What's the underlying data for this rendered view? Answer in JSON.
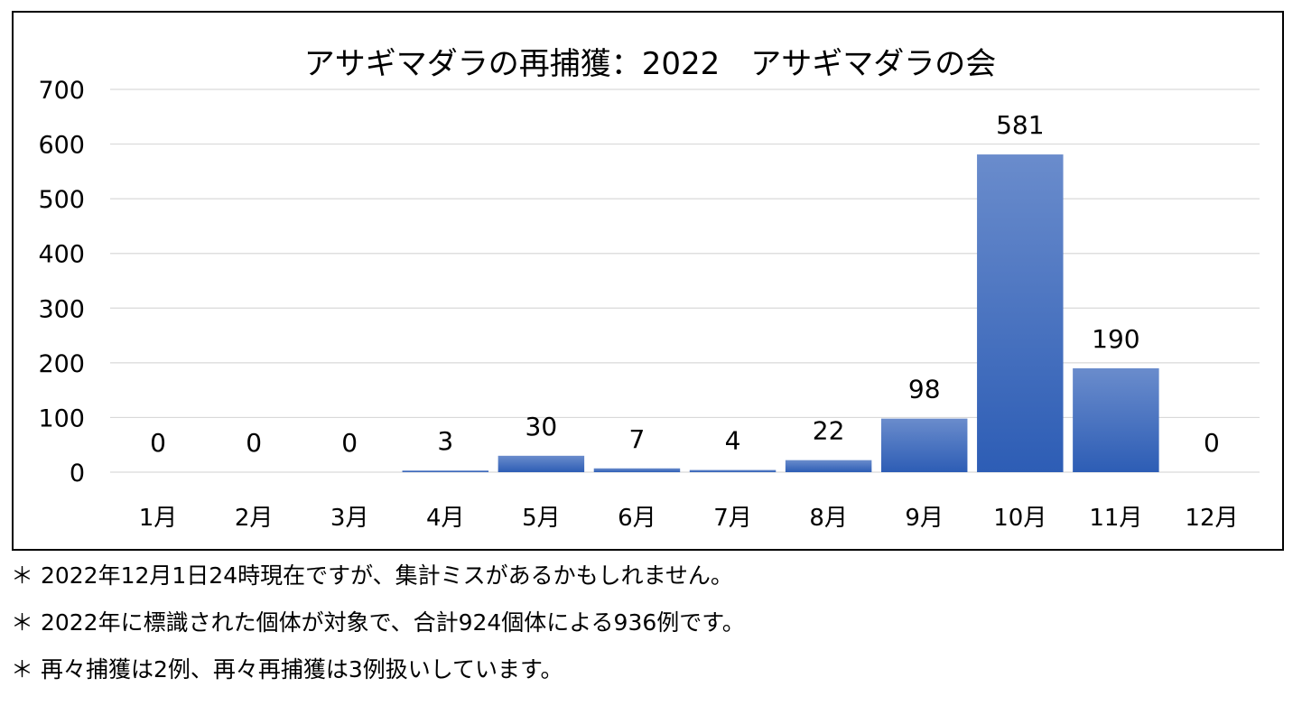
{
  "chart_data": {
    "type": "bar",
    "title": "アサギマダラの再捕獲：2022　アサギマダラの会",
    "categories": [
      "1月",
      "2月",
      "3月",
      "4月",
      "5月",
      "6月",
      "7月",
      "8月",
      "9月",
      "10月",
      "11月",
      "12月"
    ],
    "values": [
      0,
      0,
      0,
      3,
      30,
      7,
      4,
      22,
      98,
      581,
      190,
      0
    ],
    "y_ticks": [
      "0",
      "100",
      "200",
      "300",
      "400",
      "500",
      "600",
      "700"
    ],
    "ylim": [
      0,
      700
    ],
    "grid": true,
    "legend": "none",
    "colors": {
      "bar_top": "#6a8ccc",
      "bar_bottom": "#2d5db5",
      "grid": "#d9d9d9"
    }
  },
  "notes": [
    "＊ 2022年12月1日24時現在ですが、集計ミスがあるかもしれません。",
    "＊ 2022年に標識された個体が対象で、合計924個体による936例です。",
    "＊ 再々捕獲は2例、再々再捕獲は3例扱いしています。"
  ]
}
